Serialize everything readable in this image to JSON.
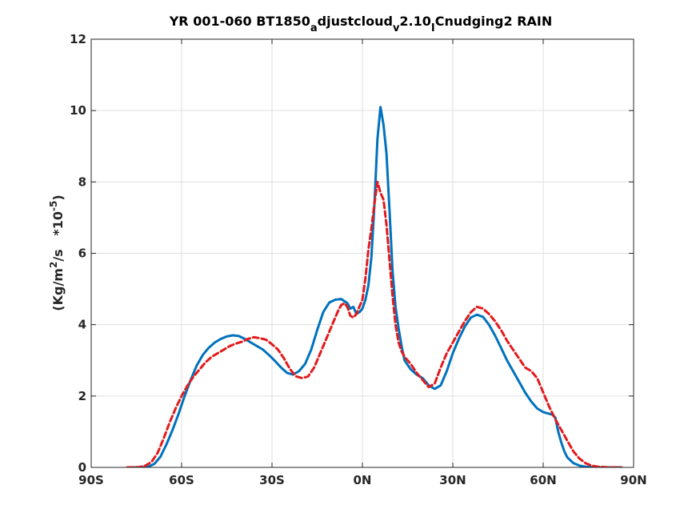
{
  "chart_data": {
    "type": "line",
    "title": {
      "segments": [
        {
          "text": "YR 001-060 BT1850",
          "sub": false
        },
        {
          "text": "a",
          "sub": true
        },
        {
          "text": "djustcloud",
          "sub": false
        },
        {
          "text": "v",
          "sub": true
        },
        {
          "text": "2.10",
          "sub": false
        },
        {
          "text": "I",
          "sub": true
        },
        {
          "text": "Cnudging2 RAIN",
          "sub": false
        }
      ]
    },
    "ylabel": {
      "unit_prefix": "(Kg/m",
      "unit_exp": "2",
      "unit_suffix": "/s",
      "scale_prefix": "*10",
      "scale_exp": "-5",
      "scale_suffix": ")"
    },
    "xlim": [
      -90,
      90
    ],
    "ylim": [
      0,
      12
    ],
    "xticks": [
      -90,
      -60,
      -30,
      0,
      30,
      60,
      90
    ],
    "xtick_labels": [
      "90S",
      "60S",
      "30S",
      "0N",
      "30N",
      "60N",
      "90N"
    ],
    "yticks": [
      0,
      2,
      4,
      6,
      8,
      10,
      12
    ],
    "ytick_labels": [
      "0",
      "2",
      "4",
      "6",
      "8",
      "10",
      "12"
    ],
    "grid": true,
    "series": [
      {
        "color": "#0072bd",
        "dash": "solid",
        "x": [
          -78,
          -74,
          -71,
          -69,
          -67,
          -65,
          -63,
          -61,
          -59,
          -57,
          -55,
          -53,
          -51,
          -49,
          -47,
          -45,
          -43,
          -41,
          -39,
          -37,
          -35,
          -33,
          -31,
          -29,
          -27,
          -25,
          -23,
          -21,
          -19,
          -17,
          -15,
          -13,
          -11,
          -9,
          -7,
          -5,
          -4,
          -3,
          -2,
          -1,
          0,
          1,
          2,
          3,
          4,
          5,
          6,
          7,
          8,
          9,
          10,
          11,
          12,
          13,
          14,
          16,
          18,
          20,
          22,
          24,
          26,
          28,
          30,
          32,
          34,
          36,
          38,
          40,
          42,
          44,
          46,
          48,
          50,
          52,
          54,
          56,
          58,
          60,
          62,
          63,
          64,
          65,
          66,
          67,
          68,
          70,
          72,
          74,
          76,
          78,
          80,
          82,
          84,
          86
        ],
        "y": [
          0.0,
          0.0,
          0.02,
          0.1,
          0.3,
          0.65,
          1.05,
          1.5,
          2.0,
          2.45,
          2.85,
          3.15,
          3.35,
          3.5,
          3.6,
          3.67,
          3.7,
          3.68,
          3.6,
          3.5,
          3.4,
          3.3,
          3.15,
          2.98,
          2.8,
          2.65,
          2.6,
          2.7,
          2.9,
          3.3,
          3.85,
          4.35,
          4.62,
          4.7,
          4.72,
          4.6,
          4.45,
          4.5,
          4.3,
          4.35,
          4.45,
          4.7,
          5.1,
          5.9,
          7.4,
          9.2,
          10.1,
          9.6,
          8.8,
          7.2,
          5.5,
          4.5,
          3.9,
          3.4,
          3.0,
          2.75,
          2.6,
          2.5,
          2.3,
          2.2,
          2.3,
          2.7,
          3.2,
          3.6,
          3.95,
          4.2,
          4.28,
          4.22,
          4.0,
          3.7,
          3.35,
          3.0,
          2.7,
          2.4,
          2.1,
          1.85,
          1.65,
          1.55,
          1.5,
          1.48,
          1.4,
          1.0,
          0.7,
          0.45,
          0.28,
          0.12,
          0.05,
          0.02,
          0.01,
          0.0,
          0.0,
          0.0,
          0.0,
          0.0
        ]
      },
      {
        "color": "#e31a1c",
        "dash": "dashed",
        "x": [
          -78,
          -74,
          -72,
          -70,
          -68,
          -66,
          -64,
          -62,
          -60,
          -58,
          -56,
          -54,
          -52,
          -50,
          -48,
          -46,
          -44,
          -42,
          -40,
          -38,
          -36,
          -34,
          -32,
          -30,
          -28,
          -26,
          -24,
          -22,
          -20,
          -18,
          -16,
          -14,
          -12,
          -10,
          -8,
          -7,
          -6,
          -5,
          -4,
          -3,
          -2,
          -1,
          0,
          1,
          2,
          3,
          4,
          5,
          6,
          7,
          8,
          9,
          10,
          11,
          12,
          13,
          14,
          16,
          18,
          20,
          22,
          24,
          26,
          28,
          30,
          32,
          34,
          36,
          38,
          40,
          42,
          44,
          46,
          48,
          50,
          52,
          54,
          56,
          58,
          60,
          62,
          64,
          66,
          68,
          70,
          72,
          74,
          76,
          78,
          80,
          82,
          84,
          86
        ],
        "y": [
          0.0,
          0.01,
          0.05,
          0.15,
          0.4,
          0.8,
          1.25,
          1.65,
          2.0,
          2.3,
          2.55,
          2.75,
          2.95,
          3.1,
          3.2,
          3.3,
          3.4,
          3.47,
          3.52,
          3.6,
          3.65,
          3.62,
          3.58,
          3.45,
          3.3,
          3.05,
          2.75,
          2.55,
          2.5,
          2.55,
          2.8,
          3.2,
          3.6,
          4.0,
          4.4,
          4.55,
          4.6,
          4.5,
          4.25,
          4.2,
          4.3,
          4.5,
          4.7,
          5.3,
          6.1,
          6.7,
          7.4,
          8.0,
          7.7,
          7.5,
          6.8,
          5.8,
          4.8,
          4.0,
          3.5,
          3.25,
          3.1,
          2.9,
          2.65,
          2.45,
          2.25,
          2.35,
          2.8,
          3.2,
          3.5,
          3.8,
          4.1,
          4.35,
          4.5,
          4.45,
          4.3,
          4.1,
          3.85,
          3.55,
          3.3,
          3.05,
          2.8,
          2.7,
          2.5,
          2.1,
          1.7,
          1.35,
          1.05,
          0.75,
          0.45,
          0.25,
          0.12,
          0.05,
          0.02,
          0.01,
          0.0,
          0.0,
          0.0
        ]
      }
    ]
  }
}
